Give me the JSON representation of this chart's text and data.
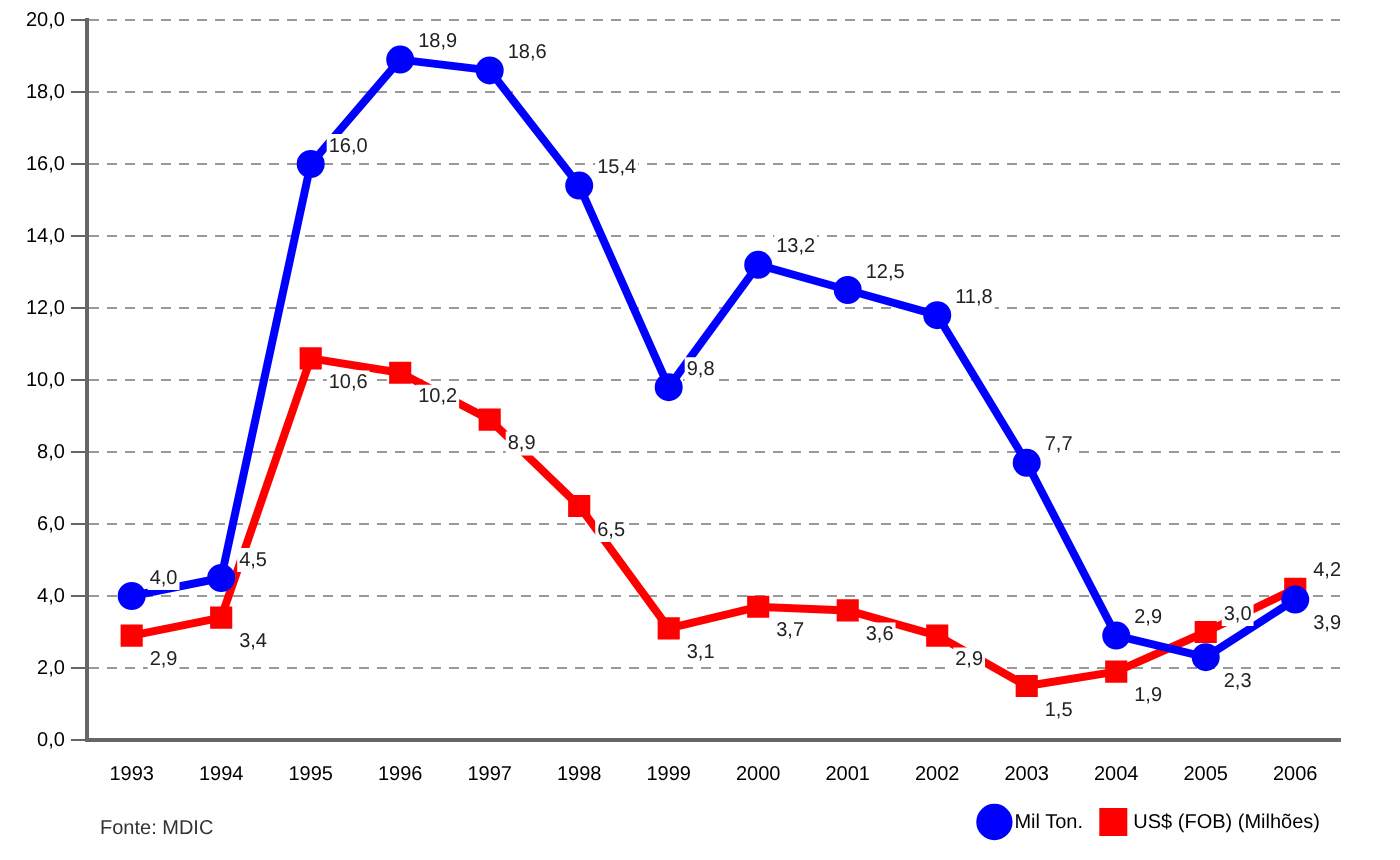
{
  "chart_data": {
    "type": "line",
    "categories": [
      "1993",
      "1994",
      "1995",
      "1996",
      "1997",
      "1998",
      "1999",
      "2000",
      "2001",
      "2002",
      "2003",
      "2004",
      "2005",
      "2006"
    ],
    "series": [
      {
        "name": "Mil Ton.",
        "color": "#0000ff",
        "marker": "circle",
        "values": [
          4.0,
          4.5,
          16.0,
          18.9,
          18.6,
          15.4,
          9.8,
          13.2,
          12.5,
          11.8,
          7.7,
          2.9,
          2.3,
          3.9
        ],
        "value_labels": [
          "4,0",
          "4,5",
          "16,0",
          "18,9",
          "18,6",
          "15,4",
          "9,8",
          "13,2",
          "12,5",
          "11,8",
          "7,7",
          "2,9",
          "2,3",
          "3,9"
        ]
      },
      {
        "name": "US$ (FOB) (Milhões)",
        "color": "#ff0000",
        "marker": "square",
        "values": [
          2.9,
          3.4,
          10.6,
          10.2,
          8.9,
          6.5,
          3.1,
          3.7,
          3.6,
          2.9,
          1.5,
          1.9,
          3.0,
          4.2
        ],
        "value_labels": [
          "2,9",
          "3,4",
          "10,6",
          "10,2",
          "8,9",
          "6,5",
          "3,1",
          "3,7",
          "3,6",
          "2,9",
          "1,5",
          "1,9",
          "3,0",
          "4,2"
        ]
      }
    ],
    "ylim": [
      0,
      20
    ],
    "yticks": [
      {
        "value": 0,
        "label": "0,0"
      },
      {
        "value": 2,
        "label": "2,0"
      },
      {
        "value": 4,
        "label": "4,0"
      },
      {
        "value": 6,
        "label": "6,0"
      },
      {
        "value": 8,
        "label": "8,0"
      },
      {
        "value": 10,
        "label": "10,0"
      },
      {
        "value": 12,
        "label": "12,0"
      },
      {
        "value": 14,
        "label": "14,0"
      },
      {
        "value": 16,
        "label": "16,0"
      },
      {
        "value": 18,
        "label": "18,0"
      },
      {
        "value": 20,
        "label": "20,0"
      }
    ],
    "grid": "y",
    "legend": "bottom",
    "annotations": [
      "Fonte: MDIC"
    ]
  }
}
